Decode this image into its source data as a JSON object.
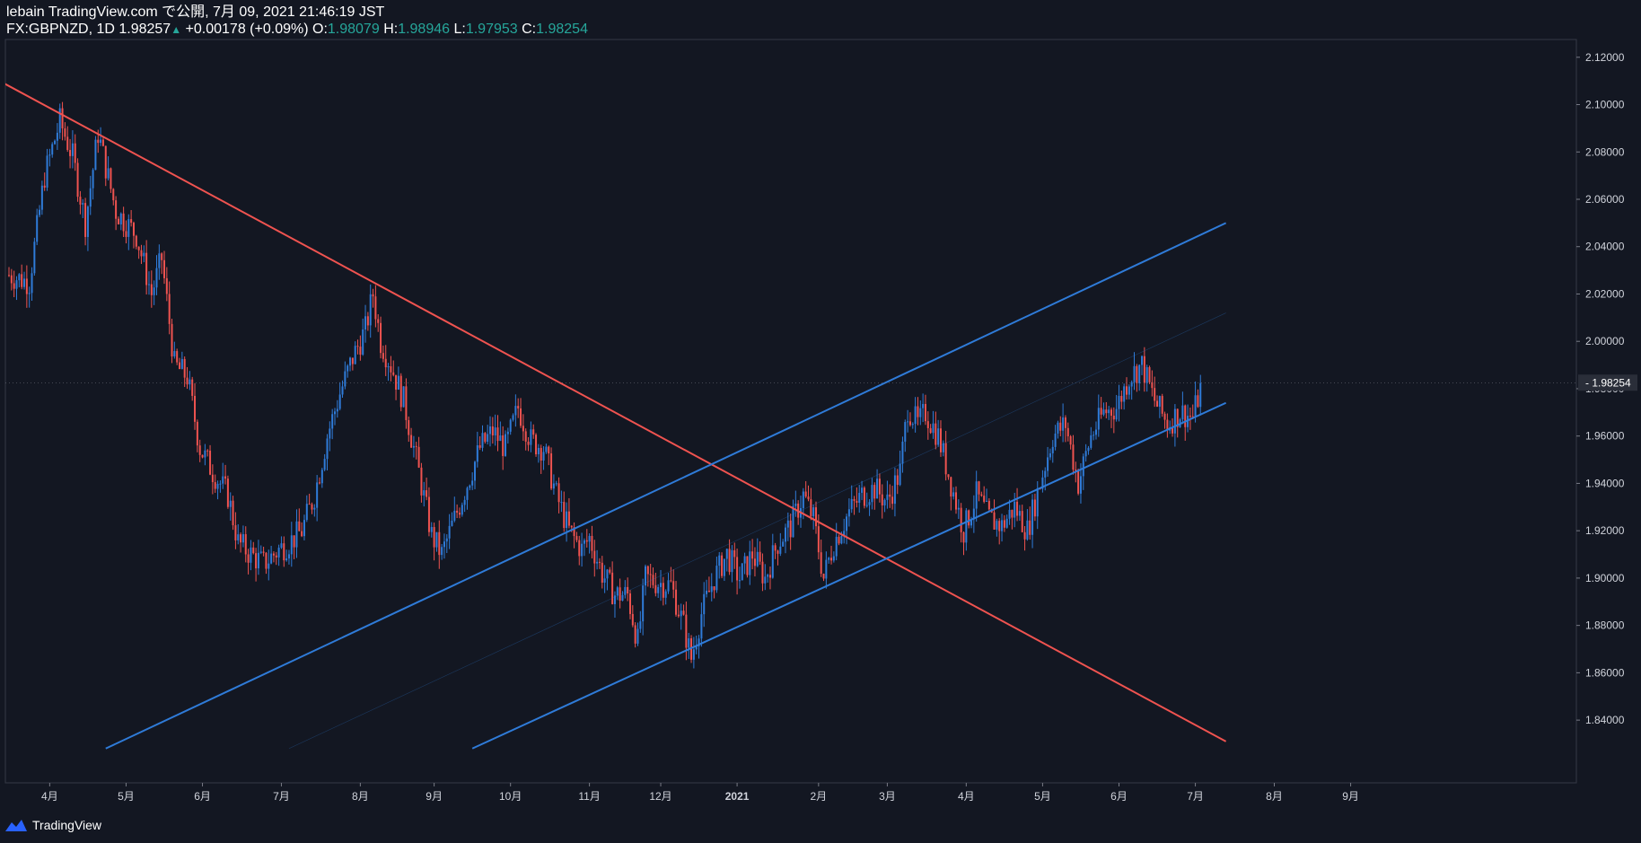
{
  "header": {
    "line1": "lebain TradingView.com で公開, 7月 09, 2021 21:46:19 JST",
    "symbol": "FX:GBPNZD, 1D",
    "last": "1.98257",
    "change_arrow": "▲",
    "change": "+0.00178 (+0.09%)",
    "o_label": "O:",
    "o_value": "1.98079",
    "h_label": "H:",
    "h_value": "1.98946",
    "l_label": "L:",
    "l_value": "1.97953",
    "c_label": "C:",
    "c_value": "1.98254"
  },
  "footer": {
    "brand": "TradingView"
  },
  "colors": {
    "background": "#131722",
    "up": "#2f7bd8",
    "down": "#ef5350",
    "channel": "#2f7bd8",
    "resistance": "#ef5350",
    "axis_text": "#d1d4dc",
    "price_tag_bg": "#2a2e39"
  },
  "chart_data": {
    "type": "candlestick",
    "symbol": "FX:GBPNZD",
    "timeframe": "1D",
    "x_ticks": [
      "4月",
      "5月",
      "6月",
      "7月",
      "8月",
      "9月",
      "10月",
      "11月",
      "12月",
      "2021",
      "2月",
      "3月",
      "4月",
      "5月",
      "6月",
      "7月",
      "8月",
      "9月"
    ],
    "y_ticks": [
      "2.12000",
      "2.10000",
      "2.08000",
      "2.06000",
      "2.04000",
      "2.02000",
      "2.00000",
      "1.98000",
      "1.96000",
      "1.94000",
      "1.92000",
      "1.90000",
      "1.88000",
      "1.86000",
      "1.84000"
    ],
    "ylim": [
      1.8135,
      2.1275
    ],
    "last_price_label": "1.98254",
    "last_price": 1.98254,
    "path_points": [
      [
        0,
        2.028
      ],
      [
        8,
        2.025
      ],
      [
        14,
        2.07
      ],
      [
        20,
        2.093
      ],
      [
        25,
        2.078
      ],
      [
        30,
        2.05
      ],
      [
        35,
        2.088
      ],
      [
        42,
        2.055
      ],
      [
        50,
        2.045
      ],
      [
        56,
        2.02
      ],
      [
        60,
        2.035
      ],
      [
        65,
        1.99
      ],
      [
        70,
        1.985
      ],
      [
        75,
        1.955
      ],
      [
        80,
        1.945
      ],
      [
        86,
        1.935
      ],
      [
        90,
        1.915
      ],
      [
        95,
        1.91
      ],
      [
        100,
        1.906
      ],
      [
        106,
        1.912
      ],
      [
        110,
        1.915
      ],
      [
        115,
        1.92
      ],
      [
        120,
        1.935
      ],
      [
        125,
        1.96
      ],
      [
        130,
        1.978
      ],
      [
        135,
        1.993
      ],
      [
        140,
        2.005
      ],
      [
        143,
        2.02
      ],
      [
        146,
        2.0
      ],
      [
        150,
        1.99
      ],
      [
        155,
        1.975
      ],
      [
        160,
        1.95
      ],
      [
        166,
        1.918
      ],
      [
        170,
        1.91
      ],
      [
        175,
        1.925
      ],
      [
        180,
        1.94
      ],
      [
        185,
        1.955
      ],
      [
        190,
        1.962
      ],
      [
        195,
        1.955
      ],
      [
        200,
        1.972
      ],
      [
        205,
        1.958
      ],
      [
        210,
        1.955
      ],
      [
        215,
        1.935
      ],
      [
        220,
        1.92
      ],
      [
        225,
        1.912
      ],
      [
        228,
        1.917
      ],
      [
        233,
        1.902
      ],
      [
        238,
        1.893
      ],
      [
        243,
        1.893
      ],
      [
        247,
        1.873
      ],
      [
        250,
        1.9
      ],
      [
        255,
        1.898
      ],
      [
        260,
        1.897
      ],
      [
        265,
        1.88
      ],
      [
        268,
        1.866
      ],
      [
        272,
        1.885
      ],
      [
        277,
        1.9
      ],
      [
        282,
        1.91
      ],
      [
        287,
        1.9
      ],
      [
        292,
        1.91
      ],
      [
        297,
        1.9
      ],
      [
        302,
        1.915
      ],
      [
        307,
        1.922
      ],
      [
        312,
        1.935
      ],
      [
        316,
        1.925
      ],
      [
        320,
        1.9
      ],
      [
        324,
        1.915
      ],
      [
        330,
        1.928
      ],
      [
        335,
        1.935
      ],
      [
        340,
        1.938
      ],
      [
        345,
        1.932
      ],
      [
        350,
        1.945
      ],
      [
        353,
        1.972
      ],
      [
        357,
        1.965
      ],
      [
        360,
        1.97
      ],
      [
        365,
        1.96
      ],
      [
        370,
        1.94
      ],
      [
        375,
        1.92
      ],
      [
        380,
        1.935
      ],
      [
        385,
        1.925
      ],
      [
        390,
        1.922
      ],
      [
        395,
        1.93
      ],
      [
        400,
        1.92
      ],
      [
        405,
        1.94
      ],
      [
        410,
        1.96
      ],
      [
        415,
        1.965
      ],
      [
        420,
        1.94
      ],
      [
        425,
        1.96
      ],
      [
        430,
        1.97
      ],
      [
        435,
        1.972
      ],
      [
        440,
        1.985
      ],
      [
        445,
        1.99
      ],
      [
        450,
        1.975
      ],
      [
        455,
        1.965
      ],
      [
        460,
        1.97
      ],
      [
        465,
        1.968
      ],
      [
        468,
        1.98
      ]
    ],
    "candle_count": 469,
    "trend_lines": [
      {
        "name": "resistance",
        "color": "resistance",
        "points": [
          [
            -2,
            2.109
          ],
          [
            478,
            1.831
          ]
        ]
      },
      {
        "name": "channel-top",
        "color": "channel",
        "points": [
          [
            38,
            1.828
          ],
          [
            478,
            2.05
          ]
        ]
      },
      {
        "name": "channel-bottom",
        "color": "channel",
        "points": [
          [
            182,
            1.828
          ],
          [
            478,
            1.974
          ]
        ]
      },
      {
        "name": "channel-mid",
        "color": "channel",
        "faint": true,
        "points": [
          [
            110,
            1.828
          ],
          [
            478,
            2.012
          ]
        ]
      }
    ]
  }
}
